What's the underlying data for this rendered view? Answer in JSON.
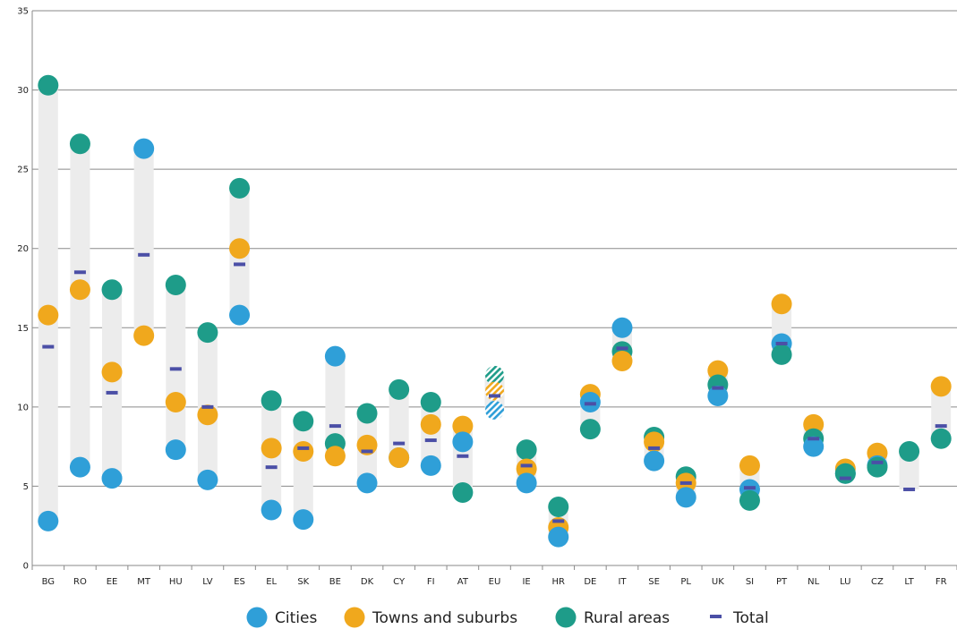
{
  "chart_data": {
    "type": "scatter",
    "title": "",
    "xlabel": "",
    "ylabel": "",
    "ylim": [
      0,
      35
    ],
    "yticks": [
      0,
      5,
      10,
      15,
      20,
      25,
      30,
      35
    ],
    "grid": true,
    "legend_position": "bottom",
    "categories": [
      "BG",
      "RO",
      "EE",
      "MT",
      "HU",
      "LV",
      "ES",
      "EL",
      "SK",
      "BE",
      "DK",
      "CY",
      "FI",
      "AT",
      "EU",
      "IE",
      "HR",
      "DE",
      "IT",
      "SE",
      "PL",
      "UK",
      "SI",
      "PT",
      "NL",
      "LU",
      "CZ",
      "LT",
      "FR"
    ],
    "series": [
      {
        "name": "Cities",
        "key": "cities",
        "color": "#2F9FD8",
        "values": [
          2.8,
          6.2,
          5.5,
          26.3,
          7.3,
          5.4,
          15.8,
          3.5,
          2.9,
          13.2,
          5.2,
          6.8,
          6.3,
          7.8,
          9.8,
          5.2,
          1.8,
          10.3,
          15.0,
          6.6,
          4.3,
          10.7,
          4.8,
          14.0,
          7.5,
          5.8,
          6.3,
          null,
          null
        ]
      },
      {
        "name": "Towns and suburbs",
        "key": "towns",
        "color": "#F0A81D",
        "values": [
          15.8,
          17.4,
          12.2,
          14.5,
          10.3,
          9.5,
          20.0,
          7.4,
          7.2,
          6.9,
          7.6,
          6.8,
          8.9,
          8.8,
          11.0,
          6.1,
          2.4,
          10.8,
          12.9,
          7.8,
          5.2,
          12.3,
          6.3,
          16.5,
          8.9,
          6.1,
          7.1,
          null,
          11.3
        ]
      },
      {
        "name": "Rural areas",
        "key": "rural",
        "color": "#1E9C89",
        "values": [
          30.3,
          26.6,
          17.4,
          null,
          17.7,
          14.7,
          23.8,
          10.4,
          9.1,
          7.7,
          9.6,
          11.1,
          10.3,
          4.6,
          12.0,
          7.3,
          3.7,
          8.6,
          13.5,
          8.1,
          5.6,
          11.4,
          4.1,
          13.3,
          8.0,
          5.8,
          6.2,
          7.2,
          8.0
        ]
      },
      {
        "name": "Total",
        "key": "total",
        "color": "#4B4FA6",
        "values": [
          13.8,
          18.5,
          10.9,
          19.6,
          12.4,
          10.0,
          19.0,
          6.2,
          7.4,
          8.8,
          7.2,
          7.7,
          7.9,
          6.9,
          10.7,
          6.3,
          2.8,
          10.2,
          13.7,
          7.4,
          5.2,
          11.2,
          4.9,
          14.0,
          8.0,
          5.5,
          6.5,
          4.8,
          8.8
        ]
      }
    ],
    "hatched_category": "EU"
  }
}
